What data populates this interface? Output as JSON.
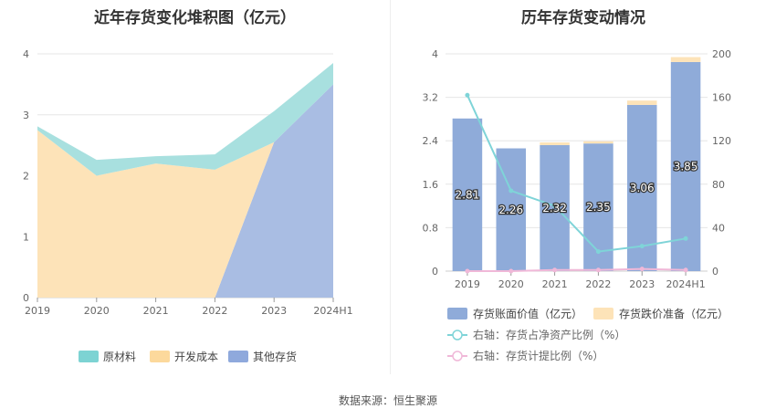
{
  "left_chart": {
    "title": "近年存货变化堆积图（亿元）",
    "chart_data": {
      "type": "area",
      "stacked": true,
      "categories": [
        "2019",
        "2020",
        "2021",
        "2022",
        "2023",
        "2024H1"
      ],
      "ylim": [
        0,
        4
      ],
      "yticks": [
        "0",
        "1",
        "2",
        "3",
        "4"
      ],
      "series": [
        {
          "name": "其他存货",
          "color": "#a9bde3",
          "values": [
            0,
            0,
            0,
            0,
            2.55,
            3.5
          ]
        },
        {
          "name": "开发成本",
          "color": "#fde3b8",
          "values": [
            2.75,
            2.0,
            2.2,
            2.1,
            0,
            0
          ]
        },
        {
          "name": "原材料",
          "color": "#a8e0df",
          "values": [
            0.06,
            0.26,
            0.12,
            0.25,
            0.51,
            0.35
          ]
        }
      ],
      "legend": [
        "原材料",
        "开发成本",
        "其他存货"
      ],
      "legend_colors": [
        "#7dd3d3",
        "#fcd99c",
        "#8fa9dc"
      ],
      "legend_position": "bottom"
    }
  },
  "right_chart": {
    "title": "历年存货变动情况",
    "chart_data": {
      "type": "bar",
      "categories": [
        "2019",
        "2020",
        "2021",
        "2022",
        "2023",
        "2024H1"
      ],
      "ylim": [
        0,
        4
      ],
      "yticks": [
        "0",
        "0.8",
        "1.6",
        "2.4",
        "3.2",
        "4"
      ],
      "y2lim": [
        0,
        200
      ],
      "y2ticks": [
        "0",
        "40",
        "80",
        "120",
        "160",
        "200"
      ],
      "series": [
        {
          "name": "存货账面价值（亿元）",
          "kind": "bar",
          "color": "#8fabd9",
          "values": [
            2.81,
            2.26,
            2.32,
            2.35,
            3.06,
            3.85
          ],
          "labels": [
            "2.81",
            "2.26",
            "2.32",
            "2.35",
            "3.06",
            "3.85"
          ]
        },
        {
          "name": "存货跌价准备（亿元）",
          "kind": "bar",
          "color": "#fde3b8",
          "values": [
            0,
            0,
            0.05,
            0.04,
            0.08,
            0.09
          ]
        },
        {
          "name": "右轴：存货占净资产比例（%）",
          "kind": "line",
          "axis": "right",
          "color": "#7fd4d8",
          "values": [
            162,
            74,
            60,
            18,
            23,
            30
          ]
        },
        {
          "name": "右轴：存货计提比例（%）",
          "kind": "line",
          "axis": "right",
          "color": "#f0b8d8",
          "values": [
            0,
            0,
            1,
            1,
            2,
            1
          ]
        }
      ],
      "legend_position": "bottom"
    }
  },
  "footer": {
    "source": "数据来源：恒生聚源"
  }
}
